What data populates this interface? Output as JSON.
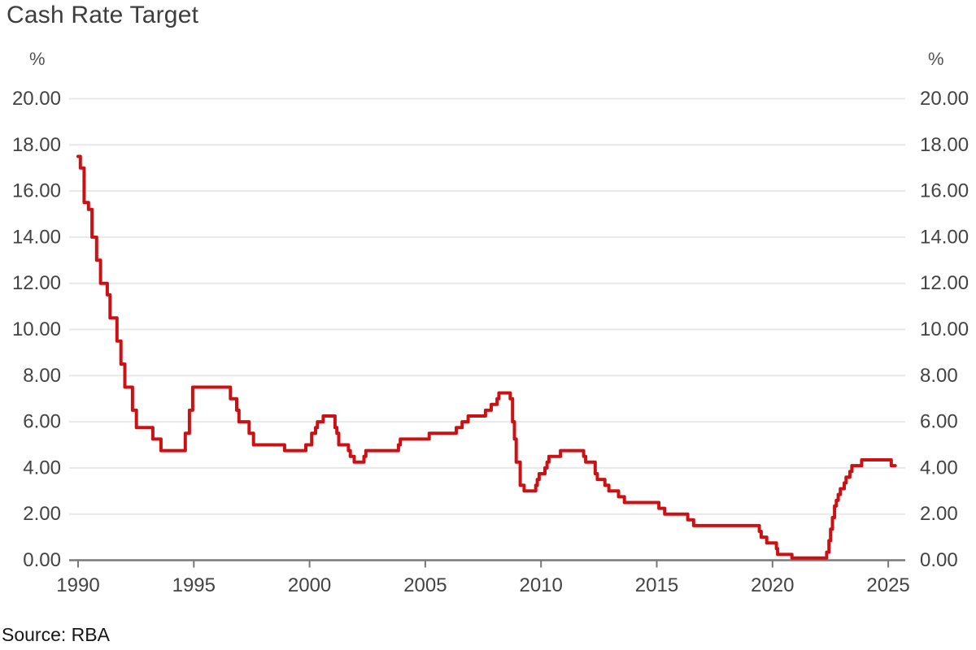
{
  "chart_data": {
    "type": "line",
    "title": "Cash Rate Target",
    "unit_label": "%",
    "source": "Source: RBA",
    "series": [
      {
        "name": "Cash Rate Target",
        "color": "#cc1114",
        "step": true,
        "points": [
          [
            1990.0,
            17.5
          ],
          [
            1990.1,
            17.0
          ],
          [
            1990.26,
            15.5
          ],
          [
            1990.45,
            15.2
          ],
          [
            1990.6,
            14.0
          ],
          [
            1990.8,
            13.0
          ],
          [
            1990.97,
            12.0
          ],
          [
            1991.26,
            11.5
          ],
          [
            1991.38,
            10.5
          ],
          [
            1991.68,
            9.5
          ],
          [
            1991.85,
            8.5
          ],
          [
            1992.02,
            7.5
          ],
          [
            1992.35,
            6.5
          ],
          [
            1992.52,
            5.75
          ],
          [
            1993.23,
            5.25
          ],
          [
            1993.58,
            4.75
          ],
          [
            1994.63,
            5.5
          ],
          [
            1994.81,
            6.5
          ],
          [
            1994.95,
            7.5
          ],
          [
            1996.58,
            7.0
          ],
          [
            1996.85,
            6.5
          ],
          [
            1996.95,
            6.0
          ],
          [
            1997.39,
            5.5
          ],
          [
            1997.58,
            5.0
          ],
          [
            1998.92,
            4.75
          ],
          [
            1999.84,
            5.0
          ],
          [
            2000.09,
            5.5
          ],
          [
            2000.26,
            5.75
          ],
          [
            2000.34,
            6.0
          ],
          [
            2000.59,
            6.25
          ],
          [
            2001.1,
            5.75
          ],
          [
            2001.18,
            5.5
          ],
          [
            2001.26,
            5.0
          ],
          [
            2001.68,
            4.75
          ],
          [
            2001.76,
            4.5
          ],
          [
            2001.93,
            4.25
          ],
          [
            2002.35,
            4.5
          ],
          [
            2002.43,
            4.75
          ],
          [
            2003.84,
            5.0
          ],
          [
            2003.92,
            5.25
          ],
          [
            2005.17,
            5.5
          ],
          [
            2006.34,
            5.75
          ],
          [
            2006.59,
            6.0
          ],
          [
            2006.85,
            6.25
          ],
          [
            2007.6,
            6.5
          ],
          [
            2007.85,
            6.75
          ],
          [
            2008.1,
            7.0
          ],
          [
            2008.18,
            7.25
          ],
          [
            2008.67,
            7.0
          ],
          [
            2008.77,
            6.0
          ],
          [
            2008.85,
            5.25
          ],
          [
            2008.93,
            4.25
          ],
          [
            2009.1,
            3.25
          ],
          [
            2009.27,
            3.0
          ],
          [
            2009.77,
            3.25
          ],
          [
            2009.84,
            3.5
          ],
          [
            2009.92,
            3.75
          ],
          [
            2010.17,
            4.0
          ],
          [
            2010.26,
            4.25
          ],
          [
            2010.34,
            4.5
          ],
          [
            2010.84,
            4.75
          ],
          [
            2011.84,
            4.5
          ],
          [
            2011.93,
            4.25
          ],
          [
            2012.34,
            3.75
          ],
          [
            2012.43,
            3.5
          ],
          [
            2012.76,
            3.25
          ],
          [
            2012.93,
            3.0
          ],
          [
            2013.35,
            2.75
          ],
          [
            2013.6,
            2.5
          ],
          [
            2015.09,
            2.25
          ],
          [
            2015.34,
            2.0
          ],
          [
            2016.34,
            1.75
          ],
          [
            2016.59,
            1.5
          ],
          [
            2019.43,
            1.25
          ],
          [
            2019.51,
            1.0
          ],
          [
            2019.75,
            0.75
          ],
          [
            2020.17,
            0.5
          ],
          [
            2020.22,
            0.25
          ],
          [
            2020.84,
            0.1
          ],
          [
            2022.34,
            0.35
          ],
          [
            2022.44,
            0.85
          ],
          [
            2022.51,
            1.35
          ],
          [
            2022.59,
            1.85
          ],
          [
            2022.68,
            2.35
          ],
          [
            2022.76,
            2.6
          ],
          [
            2022.84,
            2.85
          ],
          [
            2022.93,
            3.1
          ],
          [
            2023.1,
            3.35
          ],
          [
            2023.18,
            3.6
          ],
          [
            2023.34,
            3.85
          ],
          [
            2023.43,
            4.1
          ],
          [
            2023.85,
            4.35
          ],
          [
            2025.13,
            4.1
          ]
        ],
        "x_end": 2025.3
      }
    ],
    "x_ticks": [
      1990,
      1995,
      2000,
      2005,
      2010,
      2015,
      2020,
      2025
    ],
    "y_ticks": [
      0,
      2,
      4,
      6,
      8,
      10,
      12,
      14,
      16,
      18,
      20
    ],
    "y_tick_labels": [
      "0.00",
      "2.00",
      "4.00",
      "6.00",
      "8.00",
      "10.00",
      "12.00",
      "14.00",
      "16.00",
      "18.00",
      "20.00"
    ],
    "ylim": [
      0,
      20
    ],
    "xlim": [
      1989.62,
      2025.75
    ],
    "grid": "horizontal",
    "legend": "none",
    "axis_color": "#787878",
    "grid_color": "#e8e8e8",
    "tick_text_color": "#434343"
  }
}
